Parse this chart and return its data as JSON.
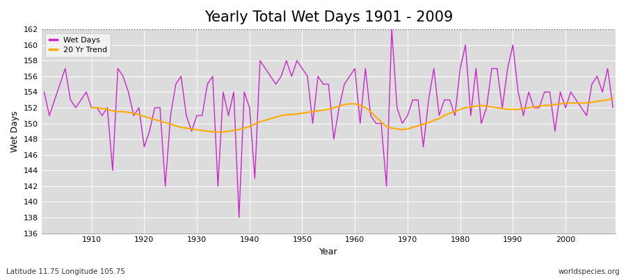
{
  "title": "Yearly Total Wet Days 1901 - 2009",
  "xlabel": "Year",
  "ylabel": "Wet Days",
  "subtitle_left": "Latitude 11.75 Longitude 105.75",
  "subtitle_right": "worldspecies.org",
  "years": [
    1901,
    1902,
    1903,
    1904,
    1905,
    1906,
    1907,
    1908,
    1909,
    1910,
    1911,
    1912,
    1913,
    1914,
    1915,
    1916,
    1917,
    1918,
    1919,
    1920,
    1921,
    1922,
    1923,
    1924,
    1925,
    1926,
    1927,
    1928,
    1929,
    1930,
    1931,
    1932,
    1933,
    1934,
    1935,
    1936,
    1937,
    1938,
    1939,
    1940,
    1941,
    1942,
    1943,
    1944,
    1945,
    1946,
    1947,
    1948,
    1949,
    1950,
    1951,
    1952,
    1953,
    1954,
    1955,
    1956,
    1957,
    1958,
    1959,
    1960,
    1961,
    1962,
    1963,
    1964,
    1965,
    1966,
    1967,
    1968,
    1969,
    1970,
    1971,
    1972,
    1973,
    1974,
    1975,
    1976,
    1977,
    1978,
    1979,
    1980,
    1981,
    1982,
    1983,
    1984,
    1985,
    1986,
    1987,
    1988,
    1989,
    1990,
    1991,
    1992,
    1993,
    1994,
    1995,
    1996,
    1997,
    1998,
    1999,
    2000,
    2001,
    2002,
    2003,
    2004,
    2005,
    2006,
    2007,
    2008,
    2009
  ],
  "wet_days": [
    154,
    151,
    153,
    155,
    157,
    153,
    152,
    153,
    154,
    152,
    152,
    151,
    152,
    144,
    157,
    156,
    154,
    151,
    152,
    147,
    149,
    152,
    152,
    142,
    151,
    155,
    156,
    151,
    149,
    151,
    151,
    155,
    156,
    142,
    154,
    151,
    154,
    138,
    154,
    152,
    143,
    158,
    157,
    156,
    155,
    156,
    158,
    156,
    158,
    157,
    156,
    150,
    156,
    155,
    155,
    148,
    152,
    155,
    156,
    157,
    150,
    157,
    151,
    150,
    150,
    142,
    162,
    152,
    150,
    151,
    153,
    153,
    147,
    153,
    157,
    151,
    153,
    153,
    151,
    157,
    160,
    151,
    157,
    150,
    152,
    157,
    157,
    152,
    157,
    160,
    154,
    151,
    154,
    152,
    152,
    154,
    154,
    149,
    154,
    152,
    154,
    153,
    152,
    151,
    155,
    156,
    154,
    157,
    152
  ],
  "trend_years": [
    1910,
    1911,
    1912,
    1913,
    1914,
    1915,
    1916,
    1917,
    1918,
    1919,
    1920,
    1921,
    1922,
    1923,
    1924,
    1925,
    1926,
    1927,
    1928,
    1929,
    1930,
    1931,
    1932,
    1933,
    1934,
    1935,
    1936,
    1937,
    1938,
    1939,
    1940,
    1941,
    1942,
    1943,
    1944,
    1945,
    1946,
    1947,
    1948,
    1949,
    1950,
    1951,
    1952,
    1953,
    1954,
    1955,
    1956,
    1957,
    1958,
    1959,
    1960,
    1961,
    1962,
    1963,
    1964,
    1965,
    1966,
    1967,
    1968,
    1969,
    1970,
    1971,
    1972,
    1973,
    1974,
    1975,
    1976,
    1977,
    1978,
    1979,
    1980,
    1981,
    1982,
    1983,
    1984,
    1985,
    1986,
    1987,
    1988,
    1989,
    1990,
    1991,
    1992,
    1993,
    1994,
    1995,
    1996,
    1997,
    1998,
    1999,
    2000,
    2001,
    2002,
    2003,
    2004,
    2005,
    2006,
    2007,
    2008,
    2009
  ],
  "trend_values": [
    152.0,
    152.0,
    151.9,
    151.8,
    151.6,
    151.5,
    151.5,
    151.4,
    151.3,
    151.1,
    150.9,
    150.7,
    150.5,
    150.3,
    150.1,
    149.9,
    149.7,
    149.5,
    149.4,
    149.3,
    149.2,
    149.1,
    149.0,
    148.95,
    148.9,
    148.9,
    149.0,
    149.1,
    149.2,
    149.4,
    149.6,
    149.9,
    150.2,
    150.4,
    150.6,
    150.8,
    151.0,
    151.1,
    151.15,
    151.2,
    151.3,
    151.4,
    151.5,
    151.6,
    151.7,
    151.8,
    152.0,
    152.2,
    152.4,
    152.5,
    152.5,
    152.3,
    152.0,
    151.5,
    150.8,
    150.2,
    149.6,
    149.4,
    149.3,
    149.2,
    149.3,
    149.5,
    149.7,
    149.9,
    150.1,
    150.4,
    150.6,
    151.0,
    151.3,
    151.5,
    151.8,
    152.0,
    152.1,
    152.2,
    152.3,
    152.2,
    152.1,
    152.0,
    151.9,
    151.8,
    151.8,
    151.8,
    151.9,
    152.0,
    152.1,
    152.2,
    152.3,
    152.3,
    152.4,
    152.5,
    152.6,
    152.6,
    152.6,
    152.6,
    152.6,
    152.7,
    152.8,
    152.9,
    153.0,
    153.2
  ],
  "line_color": "#cc22cc",
  "trend_color": "#ffaa00",
  "fig_bg_color": "#ffffff",
  "plot_bg_color": "#dcdcdc",
  "ylim": [
    136,
    162
  ],
  "yticks": [
    136,
    138,
    140,
    142,
    144,
    146,
    148,
    150,
    152,
    154,
    156,
    158,
    160,
    162
  ],
  "hline_y": 162,
  "hline_color": "#555555",
  "grid_color": "#ffffff",
  "title_fontsize": 15,
  "label_fontsize": 9,
  "tick_fontsize": 8,
  "legend_fontsize": 8
}
